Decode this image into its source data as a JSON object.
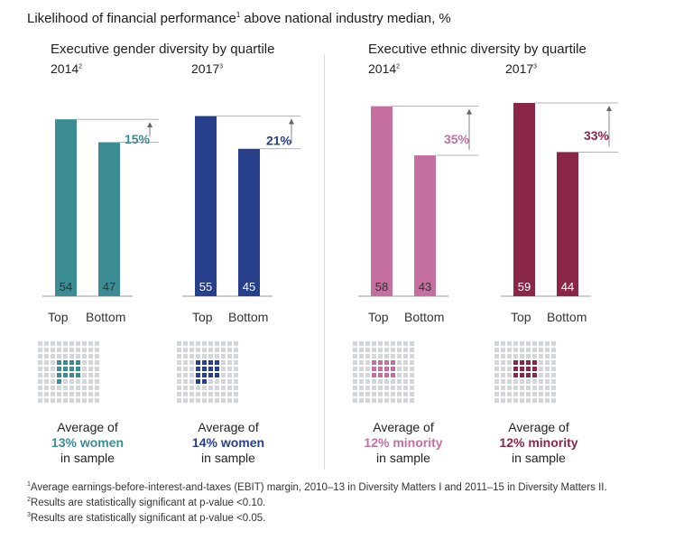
{
  "title": {
    "text": "Likelihood of financial performance",
    "sup": "1",
    "rest": " above national industry median, %"
  },
  "sections": [
    {
      "title": "Executive gender diversity by quartile",
      "color": "#3b8d93"
    },
    {
      "title": "Executive ethnic diversity by quartile",
      "color": "#c46fa0"
    }
  ],
  "chart_data": [
    {
      "type": "bar",
      "title": "2014",
      "title_sup": "2",
      "categories": [
        "Top",
        "Bottom"
      ],
      "values": [
        54,
        47
      ],
      "delta_label": "15%",
      "color": "#3b8d93",
      "ylim": [
        0,
        60
      ]
    },
    {
      "type": "bar",
      "title": "2017",
      "title_sup": "3",
      "categories": [
        "Top",
        "Bottom"
      ],
      "values": [
        55,
        45
      ],
      "delta_label": "21%",
      "color": "#283f8c",
      "ylim": [
        0,
        60
      ]
    },
    {
      "type": "bar",
      "title": "2014",
      "title_sup": "2",
      "categories": [
        "Top",
        "Bottom"
      ],
      "values": [
        58,
        43
      ],
      "delta_label": "35%",
      "color": "#c46fa0",
      "ylim": [
        0,
        60
      ]
    },
    {
      "type": "bar",
      "title": "2017",
      "title_sup": "3",
      "categories": [
        "Top",
        "Bottom"
      ],
      "values": [
        59,
        44
      ],
      "delta_label": "33%",
      "color": "#8a2749",
      "ylim": [
        0,
        60
      ]
    }
  ],
  "captions": [
    {
      "line1": "Average of",
      "highlight": "13% women",
      "line3": "in sample",
      "color": "#3b8d93",
      "share": 0.13
    },
    {
      "line1": "Average of",
      "highlight": "14% women",
      "line3": "in sample",
      "color": "#283f8c",
      "share": 0.14
    },
    {
      "line1": "Average of",
      "highlight": "12% minority",
      "line3": "in sample",
      "color": "#c46fa0",
      "share": 0.12
    },
    {
      "line1": "Average of",
      "highlight": "12% minority",
      "line3": "in sample",
      "color": "#8a2749",
      "share": 0.12
    }
  ],
  "grid_color": "#d3d6da",
  "footnotes": [
    {
      "sup": "1",
      "text": "Average earnings-before-interest-and-taxes (EBIT) margin, 2010–13 in Diversity Matters I and 2011–15 in Diversity Matters II."
    },
    {
      "sup": "2",
      "text": "Results are statistically significant at p-value <0.10."
    },
    {
      "sup": "3",
      "text": "Results are statistically significant at p-value <0.05."
    }
  ]
}
